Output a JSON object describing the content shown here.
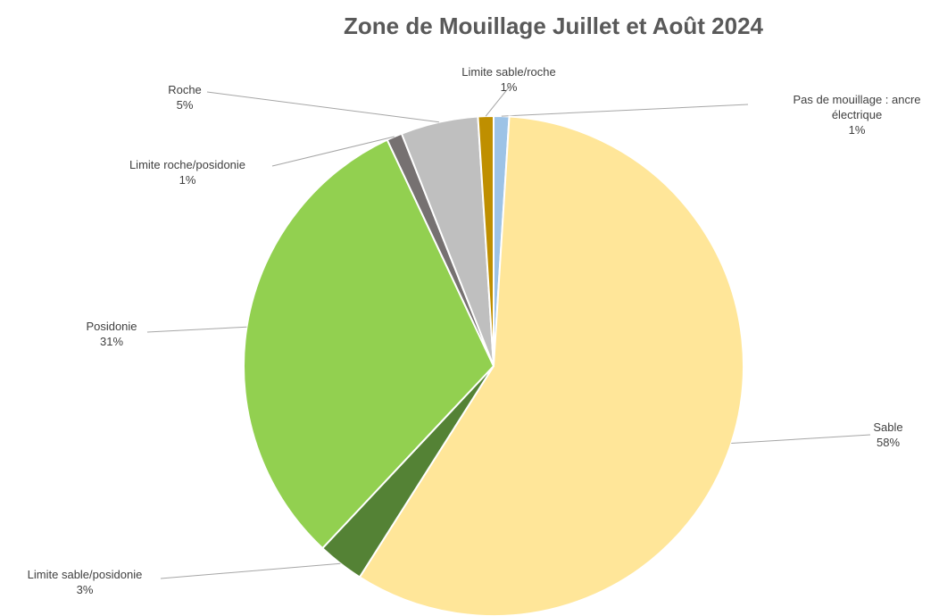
{
  "chart_data": {
    "type": "pie",
    "title": "Zone de Mouillage Juillet et Août 2024",
    "categories": [
      "Pas de mouillage : ancre électrique",
      "Sable",
      "Limite sable/posidonie",
      "Posidonie",
      "Limite roche/posidonie",
      "Roche",
      "Limite sable/roche"
    ],
    "values": [
      1,
      58,
      3,
      31,
      1,
      5,
      1
    ],
    "value_labels": [
      "1%",
      "58%",
      "3%",
      "31%",
      "1%",
      "5%",
      "1%"
    ],
    "colors": [
      "#9dc3e6",
      "#ffe699",
      "#548235",
      "#92d050",
      "#767171",
      "#bfbfbf",
      "#bf8f00"
    ]
  }
}
